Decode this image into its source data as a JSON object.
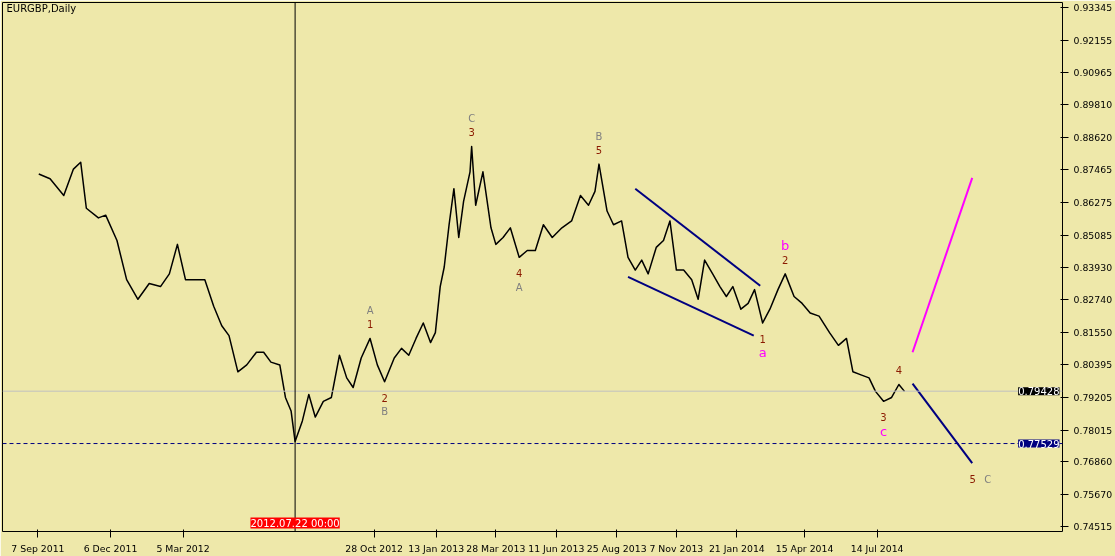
{
  "chart_data": {
    "type": "line",
    "title": "EURGBP,Daily",
    "grid": false,
    "marker": "none",
    "line_style": "solid",
    "xlim": [
      "2011-07-25",
      "2015-03-01"
    ],
    "ylim": [
      0.7434,
      0.9352
    ],
    "xticks": [
      {
        "value": "2011-09-07",
        "label": "7 Sep 2011"
      },
      {
        "value": "2011-12-06",
        "label": "6 Dec 2011"
      },
      {
        "value": "2012-03-05",
        "label": "5 Mar 2012"
      },
      {
        "value": "2012-10-28",
        "label": "28 Oct 2012"
      },
      {
        "value": "2013-01-13",
        "label": "13 Jan 2013"
      },
      {
        "value": "2013-03-28",
        "label": "28 Mar 2013"
      },
      {
        "value": "2013-06-11",
        "label": "11 Jun 2013"
      },
      {
        "value": "2013-08-25",
        "label": "25 Aug 2013"
      },
      {
        "value": "2013-11-07",
        "label": "7 Nov 2013"
      },
      {
        "value": "2014-01-21",
        "label": "21 Jan 2014"
      },
      {
        "value": "2014-04-15",
        "label": "15 Apr 2014"
      },
      {
        "value": "2014-07-14",
        "label": "14 Jul 2014"
      }
    ],
    "yticks": [
      0.74515,
      {
        "value": 0.7567,
        "label": "0.75670"
      },
      {
        "value": 0.7686,
        "label": "0.76860"
      },
      0.78015,
      0.79205,
      0.80395,
      {
        "value": 0.8155,
        "label": "0.81550"
      },
      {
        "value": 0.8274,
        "label": "0.82740"
      },
      {
        "value": 0.8393,
        "label": "0.83930"
      },
      0.85085,
      0.86275,
      0.87465,
      {
        "value": 0.8862,
        "label": "0.88620"
      },
      {
        "value": 0.8981,
        "label": "0.89810"
      },
      0.90965,
      0.92155,
      0.93345
    ],
    "series": [
      {
        "color": "#000000",
        "x": [
          "2011-09-08",
          "2011-09-22",
          "2011-10-09",
          "2011-10-21",
          "2011-10-30",
          "2011-11-06",
          "2011-11-21",
          "2011-11-30",
          "2011-12-14",
          "2011-12-26",
          "2012-01-09",
          "2012-01-23",
          "2012-02-06",
          "2012-02-17",
          "2012-02-27",
          "2012-03-08",
          "2012-03-19",
          "2012-04-01",
          "2012-04-12",
          "2012-04-22",
          "2012-05-01",
          "2012-05-12",
          "2012-05-23",
          "2012-06-04",
          "2012-06-13",
          "2012-06-22",
          "2012-07-03",
          "2012-07-10",
          "2012-07-17",
          "2012-07-22",
          "2012-07-31",
          "2012-08-08",
          "2012-08-16",
          "2012-08-26",
          "2012-09-05",
          "2012-09-15",
          "2012-09-24",
          "2012-10-02",
          "2012-10-12",
          "2012-10-23",
          "2012-11-01",
          "2012-11-10",
          "2012-11-22",
          "2012-12-01",
          "2012-12-10",
          "2012-12-19",
          "2012-12-28",
          "2013-01-06",
          "2013-01-12",
          "2013-01-18",
          "2013-01-23",
          "2013-01-29",
          "2013-02-04",
          "2013-02-10",
          "2013-02-16",
          "2013-02-24",
          "2013-02-26",
          "2013-03-03",
          "2013-03-12",
          "2013-03-22",
          "2013-03-28",
          "2013-04-06",
          "2013-04-15",
          "2013-04-26",
          "2013-05-06",
          "2013-05-16",
          "2013-05-26",
          "2013-06-06",
          "2013-06-18",
          "2013-06-30",
          "2013-07-11",
          "2013-07-21",
          "2013-07-29",
          "2013-08-03",
          "2013-08-13",
          "2013-08-21",
          "2013-08-31",
          "2013-09-08",
          "2013-09-17",
          "2013-09-25",
          "2013-10-03",
          "2013-10-13",
          "2013-10-22",
          "2013-10-30",
          "2013-11-07",
          "2013-11-16",
          "2013-11-26",
          "2013-12-04",
          "2013-12-12",
          "2013-12-22",
          "2013-12-31",
          "2014-01-08",
          "2014-01-16",
          "2014-01-26",
          "2014-02-04",
          "2014-02-12",
          "2014-02-22",
          "2014-03-03",
          "2014-03-13",
          "2014-03-22",
          "2014-04-02",
          "2014-04-12",
          "2014-04-22",
          "2014-05-03",
          "2014-05-16",
          "2014-05-27",
          "2014-06-06",
          "2014-06-14",
          "2014-06-24",
          "2014-07-04",
          "2014-07-12",
          "2014-07-22",
          "2014-08-01",
          "2014-08-10",
          "2014-08-17"
        ],
        "values": [
          0.873,
          0.8713,
          0.8652,
          0.8748,
          0.8773,
          0.8606,
          0.8571,
          0.8581,
          0.8489,
          0.8347,
          0.8276,
          0.8333,
          0.8322,
          0.8368,
          0.8475,
          0.8347,
          0.8347,
          0.8347,
          0.8251,
          0.818,
          0.8144,
          0.8013,
          0.8038,
          0.8084,
          0.8084,
          0.8048,
          0.8038,
          0.792,
          0.7871,
          0.776,
          0.7835,
          0.7931,
          0.7849,
          0.7906,
          0.792,
          0.8073,
          0.7991,
          0.7956,
          0.8063,
          0.8134,
          0.8038,
          0.7977,
          0.8063,
          0.8098,
          0.8073,
          0.8134,
          0.819,
          0.8119,
          0.8155,
          0.8322,
          0.8393,
          0.8546,
          0.8677,
          0.85,
          0.8631,
          0.8738,
          0.883,
          0.8617,
          0.8738,
          0.8535,
          0.8475,
          0.85,
          0.8535,
          0.8428,
          0.8453,
          0.8453,
          0.8546,
          0.85,
          0.8535,
          0.856,
          0.8652,
          0.8617,
          0.8667,
          0.8766,
          0.8596,
          0.8546,
          0.856,
          0.8428,
          0.8382,
          0.8418,
          0.8368,
          0.8464,
          0.8489,
          0.856,
          0.8382,
          0.8382,
          0.8347,
          0.8276,
          0.8418,
          0.8368,
          0.8322,
          0.8286,
          0.8322,
          0.824,
          0.8261,
          0.8311,
          0.819,
          0.824,
          0.8311,
          0.8368,
          0.8286,
          0.8261,
          0.8226,
          0.8215,
          0.8155,
          0.8109,
          0.8134,
          0.8013,
          0.8002,
          0.7991,
          0.7942,
          0.7906,
          0.792,
          0.7967,
          0.7942
        ]
      },
      {
        "color": "#000080",
        "x": [
          "2013-09-17",
          "2014-02-19"
        ],
        "values": [
          0.8677,
          0.8325
        ]
      },
      {
        "color": "#000080",
        "x": [
          "2013-09-08",
          "2014-02-11"
        ],
        "values": [
          0.8357,
          0.8144
        ]
      },
      {
        "color": "#000080",
        "x": [
          "2014-08-27",
          "2014-11-09"
        ],
        "values": [
          0.797,
          0.7682
        ]
      },
      {
        "color": "#ff00ff",
        "x": [
          "2014-08-27",
          "2014-11-09"
        ],
        "values": [
          0.8084,
          0.8716
        ]
      }
    ],
    "ref_lines": [
      {
        "axis": "y",
        "value": 0.79428,
        "label": "0.79428",
        "color": "#c0c0c0",
        "line_style": "solid"
      },
      {
        "axis": "y",
        "value": 0.77529,
        "label": "0.77529",
        "color": "#000080",
        "line_style": "dashed"
      },
      {
        "axis": "x",
        "value": "2012-07-22",
        "label": "2012.07.22 00:00",
        "color": "#000000",
        "line_style": "solid"
      }
    ],
    "annotations": [
      {
        "text": "A\n1",
        "x": "2012-10-23",
        "y": 0.8134
      },
      {
        "text": "2\nB",
        "x": "2012-11-10",
        "y": 0.7977
      },
      {
        "text": "C\n3",
        "x": "2013-02-26",
        "y": 0.883
      },
      {
        "text": "4\nA",
        "x": "2013-04-26",
        "y": 0.8428
      },
      {
        "text": "B\n5",
        "x": "2013-08-03",
        "y": 0.8766
      },
      {
        "text": "1\na",
        "x": "2014-02-22",
        "y": 0.819
      },
      {
        "text": "b\n2",
        "x": "2014-03-22",
        "y": 0.8368
      },
      {
        "text": "4",
        "x": "2014-08-10",
        "y": 0.7967
      },
      {
        "text": "3\nc",
        "x": "2014-07-22",
        "y": 0.7906
      },
      {
        "text": "5 C",
        "x": "2014-11-09",
        "y": 0.7682
      }
    ]
  }
}
